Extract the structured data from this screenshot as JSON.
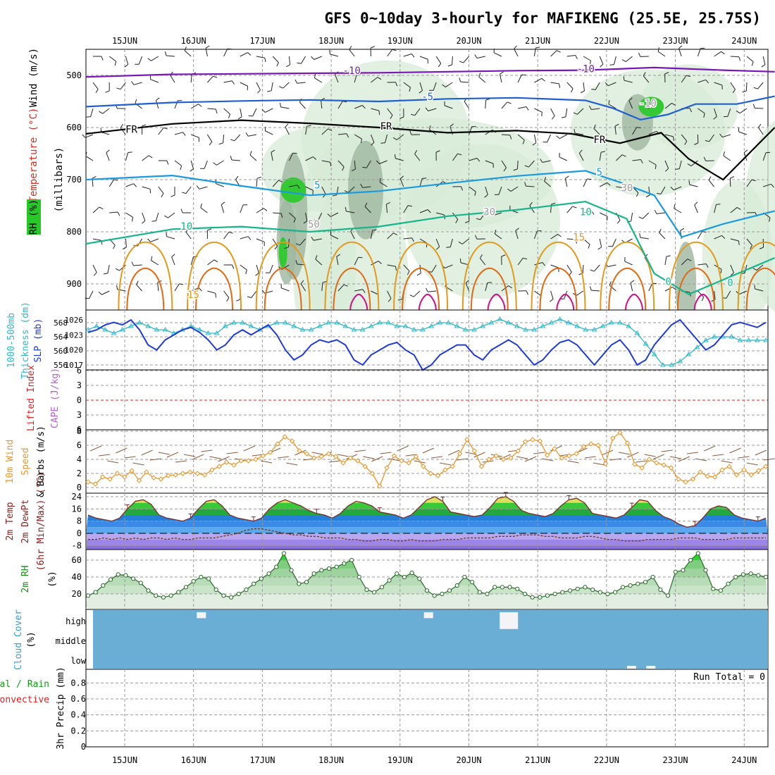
{
  "title": "GFS 0~10day 3-hourly for MAFIKENG (25.5E, 25.75S)",
  "colors": {
    "purple": "#7a16b8",
    "blue": "#1f5fd0",
    "sky": "#1a9ae0",
    "teal": "#16b58d",
    "orange": "#e39a1c",
    "darkorange": "#e06a12",
    "magenta": "#d0108a",
    "cyan": "#2fb8c8",
    "slp": "#1f3bd6",
    "wind": "#e8962a",
    "cloud": "#6aaed6",
    "rhgreen": "#2bd62b",
    "gray": "#a8a8a8",
    "red": "#e02020"
  },
  "chart_data": [
    {
      "panel": "upper-air",
      "type": "contour",
      "x_ticks": [
        "15JUN",
        "16JUN",
        "17JUN",
        "18JUN",
        "19JUN",
        "20JUN",
        "21JUN",
        "22JUN",
        "23JUN",
        "24JUN"
      ],
      "y_ticks": [
        500,
        600,
        700,
        800,
        900
      ],
      "ylim": [
        450,
        950
      ],
      "labels": {
        "ylabel_pressure": "(millibars)",
        "ylabel_wind": "Wind (m/s)",
        "ylabel_temp": "Temperature (°C)",
        "ylabel_rh": "RH (%)"
      },
      "contour_labels": [
        "-10",
        "-10",
        "-5",
        "FR",
        "FR",
        "FR",
        "5",
        "5",
        "10",
        "10",
        "15",
        "15",
        "30",
        "30",
        "50",
        "0",
        "0",
        "-10"
      ],
      "temperature_contours": [
        {
          "name": "-10",
          "color": "purple",
          "points": [
            [
              0,
              503
            ],
            [
              1,
              498
            ],
            [
              2,
              497
            ],
            [
              3,
              496
            ],
            [
              4,
              495
            ],
            [
              5,
              493
            ],
            [
              6,
              491
            ],
            [
              7,
              490
            ],
            [
              8,
              485
            ],
            [
              9,
              490
            ],
            [
              9.75,
              493
            ]
          ]
        },
        {
          "name": "-5",
          "color": "blue",
          "points": [
            [
              0,
              560
            ],
            [
              1,
              552
            ],
            [
              2,
              549
            ],
            [
              3,
              547
            ],
            [
              4,
              550
            ],
            [
              5,
              545
            ],
            [
              6,
              543
            ],
            [
              7,
              548
            ],
            [
              7.4,
              563
            ],
            [
              7.8,
              585
            ],
            [
              8.2,
              575
            ],
            [
              8.6,
              555
            ],
            [
              9.2,
              555
            ],
            [
              9.75,
              540
            ]
          ]
        },
        {
          "name": "FR",
          "color": "black",
          "points": [
            [
              0,
              612
            ],
            [
              1,
              593
            ],
            [
              2,
              586
            ],
            [
              3,
              592
            ],
            [
              4,
              600
            ],
            [
              5,
              610
            ],
            [
              6,
              606
            ],
            [
              6.8,
              612
            ],
            [
              7.5,
              630
            ],
            [
              8.1,
              610
            ],
            [
              8.5,
              660
            ],
            [
              9,
              700
            ],
            [
              9.75,
              600
            ]
          ]
        },
        {
          "name": "5",
          "color": "sky",
          "points": [
            [
              0,
              700
            ],
            [
              1,
              692
            ],
            [
              2,
              712
            ],
            [
              3,
              730
            ],
            [
              4,
              722
            ],
            [
              5,
              707
            ],
            [
              6,
              693
            ],
            [
              7,
              683
            ],
            [
              7.5,
              705
            ],
            [
              8,
              730
            ],
            [
              8.4,
              810
            ],
            [
              9,
              785
            ],
            [
              9.75,
              760
            ]
          ]
        },
        {
          "name": "10",
          "color": "teal",
          "points": [
            [
              0,
              823
            ],
            [
              1,
              795
            ],
            [
              2,
              790
            ],
            [
              3,
              800
            ],
            [
              4,
              790
            ],
            [
              5,
              770
            ],
            [
              6,
              758
            ],
            [
              7,
              742
            ],
            [
              7.6,
              775
            ],
            [
              8,
              880
            ],
            [
              8.5,
              920
            ],
            [
              9.75,
              850
            ]
          ]
        }
      ]
    },
    {
      "panel": "thickness-slp",
      "type": "line",
      "x_ticks": [
        "15JUN",
        "16JUN",
        "17JUN",
        "18JUN",
        "19JUN",
        "20JUN",
        "21JUN",
        "22JUN",
        "23JUN",
        "24JUN"
      ],
      "left_ticks": [
        568,
        564,
        560,
        556
      ],
      "right_ticks": [
        1026,
        1023,
        1020,
        1017
      ],
      "labels": {
        "ylabel_thickness": "Thickness (dm)",
        "ylabel_1000500": "1000-500mb",
        "ylabel_slp": "SLP (mb)"
      },
      "series": [
        {
          "name": "Thickness",
          "axis": "left",
          "color": "cyan",
          "values": [
            566,
            567,
            566,
            565,
            566,
            567,
            568,
            567,
            566,
            566,
            565,
            566,
            567,
            566,
            565,
            565,
            567,
            568,
            568,
            567,
            566,
            567,
            568,
            568,
            567,
            566,
            566,
            567,
            568,
            568,
            567,
            566,
            566,
            567,
            568,
            568,
            567,
            567,
            566,
            566,
            567,
            568,
            568,
            567,
            566,
            566,
            567,
            568,
            569,
            568,
            567,
            566,
            566,
            567,
            568,
            569,
            568,
            567,
            566,
            566,
            567,
            568,
            568,
            567,
            565,
            562,
            559,
            556,
            556,
            557,
            559,
            561,
            563,
            564,
            564,
            564,
            563,
            563,
            563,
            563
          ]
        },
        {
          "name": "SLP",
          "axis": "right",
          "color": "slp",
          "values": [
            1023.5,
            1024,
            1025,
            1025.5,
            1025,
            1026,
            1024,
            1021,
            1020,
            1022,
            1023,
            1024,
            1024.5,
            1023.5,
            1022,
            1020,
            1021,
            1023,
            1024,
            1023,
            1024,
            1025,
            1023,
            1020,
            1018,
            1019,
            1021,
            1022,
            1021.5,
            1022,
            1021,
            1018,
            1017,
            1019,
            1020,
            1021,
            1021.5,
            1020,
            1019,
            1016,
            1017,
            1019,
            1020,
            1021,
            1021,
            1019,
            1018,
            1020,
            1021,
            1022,
            1021,
            1019,
            1017,
            1018,
            1020,
            1021.5,
            1022,
            1021,
            1019,
            1017,
            1019,
            1021,
            1022,
            1020,
            1017,
            1018,
            1021,
            1023,
            1025,
            1026,
            1024,
            1022,
            1020,
            1021,
            1023,
            1025,
            1025.5,
            1025,
            1024.5,
            1025.5
          ]
        }
      ]
    },
    {
      "panel": "lifted-index-cape",
      "type": "line",
      "x_ticks": [
        "15JUN",
        "16JUN",
        "17JUN",
        "18JUN",
        "19JUN",
        "20JUN",
        "21JUN",
        "22JUN",
        "23JUN",
        "24JUN"
      ],
      "left_ticks": [
        -6,
        -3,
        0,
        3,
        6
      ],
      "left_tick_labels": [
        "6",
        "3",
        "0",
        "3",
        "6"
      ],
      "labels": {
        "ylabel_li": "Lifted Index",
        "ylabel_cape": "CAPE (J/kg)"
      },
      "series": [
        {
          "name": "Lifted Index",
          "color": "red",
          "values": []
        }
      ]
    },
    {
      "panel": "10m-wind",
      "type": "line",
      "x_ticks": [
        "15JUN",
        "16JUN",
        "17JUN",
        "18JUN",
        "19JUN",
        "20JUN",
        "21JUN",
        "22JUN",
        "23JUN",
        "24JUN"
      ],
      "left_ticks": [
        0,
        2,
        4,
        6,
        8
      ],
      "labels": {
        "ylabel_wind": "10m Wind",
        "ylabel_speed": "Speed",
        "ylabel_barbs": "& Barbs (m/s)"
      },
      "series": [
        {
          "name": "Speed",
          "color": "wind",
          "values": [
            0.8,
            0.5,
            1.5,
            1.2,
            2.0,
            1.5,
            2.4,
            1.0,
            2.2,
            1.4,
            1.2,
            1.7,
            1.8,
            2.0,
            2.2,
            2.0,
            1.8,
            2.5,
            3.0,
            3.6,
            3.2,
            3.8,
            3.8,
            4.0,
            4.5,
            5.0,
            6.2,
            7.2,
            6.6,
            5.2,
            4.8,
            4.2,
            4.4,
            4.8,
            4.4,
            3.5,
            4.2,
            3.8,
            3.0,
            2.0,
            0.2,
            2.8,
            4.5,
            3.8,
            3.5,
            4.4,
            3.0,
            2.0,
            1.7,
            2.5,
            3.0,
            4.8,
            6.8,
            5.2,
            3.0,
            4.0,
            4.5,
            4.0,
            4.2,
            5.2,
            6.5,
            6.8,
            6.6,
            4.6,
            5.5,
            4.2,
            4.5,
            4.8,
            5.8,
            6.2,
            6.0,
            3.4,
            7.0,
            7.8,
            6.3,
            3.3,
            2.8,
            4.0,
            3.5,
            3.2,
            2.8,
            1.2,
            0.8,
            1.2,
            2.2,
            1.6,
            1.5,
            2.5,
            3.0,
            1.8,
            2.5,
            1.8,
            2.4,
            3.0
          ]
        }
      ]
    },
    {
      "panel": "2m-temp",
      "type": "area",
      "x_ticks": [
        "15JUN",
        "16JUN",
        "17JUN",
        "18JUN",
        "19JUN",
        "20JUN",
        "21JUN",
        "22JUN",
        "23JUN",
        "24JUN"
      ],
      "left_ticks": [
        -8,
        0,
        8,
        16,
        24
      ],
      "labels": {
        "ylabel_temp": "2m Temp",
        "ylabel_dew": "2m DewPt",
        "ylabel_range": "(6hr Min/Max) (°C)"
      },
      "series": [
        {
          "name": "Temp",
          "color": "#2e8b2e",
          "values": [
            12,
            10,
            9,
            8,
            10,
            16,
            21,
            22,
            19,
            12,
            10,
            9,
            8,
            10,
            16,
            21,
            22,
            18,
            12,
            10,
            9,
            8,
            10,
            16,
            20,
            22,
            20,
            18,
            15,
            13,
            12,
            10,
            13,
            18,
            21,
            20,
            18,
            14,
            13,
            12,
            10,
            12,
            17,
            22,
            24,
            21,
            14,
            13,
            12,
            11,
            12,
            17,
            23,
            24,
            21,
            15,
            13,
            12,
            11,
            13,
            18,
            22,
            23,
            20,
            13,
            12,
            11,
            10,
            12,
            17,
            22,
            21,
            15,
            11,
            9,
            6,
            4,
            5,
            10,
            16,
            18,
            17,
            12,
            10,
            9,
            8,
            10
          ]
        },
        {
          "name": "DewPt",
          "color": "#7a3c1a",
          "values": [
            -4,
            -4,
            -3,
            -4,
            -3,
            -4,
            -3,
            -4,
            -3,
            -3,
            -4,
            -3,
            -4,
            -4,
            -3,
            -3,
            -3,
            -2,
            -1,
            0,
            2,
            3,
            3,
            2,
            1,
            0,
            -1,
            -1,
            -2,
            -2,
            -3,
            -3,
            -3,
            -4,
            -4,
            -5,
            -5,
            -4,
            -4,
            -5,
            -5,
            -4,
            -5,
            -5,
            -5,
            -4,
            -4,
            -4,
            -3,
            -3,
            -3,
            -3,
            -2,
            -2,
            -2,
            -1,
            -1,
            -1,
            -2,
            -2,
            -3,
            -3,
            -3,
            -2,
            -2,
            -3,
            -4,
            -4,
            -5,
            -5,
            -5,
            -4,
            -4,
            -4,
            -4,
            -3,
            -3,
            -3,
            -4,
            -4,
            -4,
            -4,
            -3,
            -3,
            -3,
            -3,
            -3
          ]
        }
      ]
    },
    {
      "panel": "2m-rh",
      "type": "area",
      "x_ticks": [
        "15JUN",
        "16JUN",
        "17JUN",
        "18JUN",
        "19JUN",
        "20JUN",
        "21JUN",
        "22JUN",
        "23JUN",
        "24JUN"
      ],
      "left_ticks": [
        20,
        40,
        60
      ],
      "labels": {
        "ylabel_rh": "2m RH",
        "ylabel_unit": "(%)"
      },
      "series": [
        {
          "name": "RH",
          "color": "rhgreen",
          "values": [
            18,
            22,
            30,
            37,
            43,
            42,
            38,
            33,
            24,
            18,
            16,
            18,
            22,
            28,
            35,
            40,
            38,
            25,
            18,
            16,
            20,
            25,
            32,
            38,
            44,
            52,
            68,
            48,
            32,
            34,
            44,
            48,
            50,
            52,
            56,
            60,
            40,
            25,
            22,
            28,
            36,
            44,
            40,
            45,
            38,
            24,
            18,
            20,
            24,
            30,
            40,
            34,
            22,
            20,
            28,
            28,
            28,
            26,
            20,
            16,
            16,
            18,
            20,
            22,
            24,
            26,
            28,
            25,
            22,
            20,
            22,
            28,
            30,
            32,
            34,
            40,
            25,
            18,
            46,
            48,
            60,
            68,
            48,
            26,
            24,
            32,
            40,
            43,
            44,
            42,
            40
          ]
        }
      ]
    },
    {
      "panel": "cloud-cover",
      "type": "heatmap",
      "x_ticks": [
        "15JUN",
        "16JUN",
        "17JUN",
        "18JUN",
        "19JUN",
        "20JUN",
        "21JUN",
        "22JUN",
        "23JUN",
        "24JUN"
      ],
      "row_labels": [
        "high",
        "middle",
        "low"
      ],
      "labels": {
        "ylabel_cloud": "Cloud Cover",
        "ylabel_unit": "(%)"
      },
      "cells": [
        {
          "level": "high",
          "day": 1.17,
          "value": 20
        },
        {
          "level": "high",
          "day": 4.47,
          "value": 20
        },
        {
          "level": "high",
          "day": 5.57,
          "value": 90
        },
        {
          "level": "low",
          "day": 7.42,
          "value": 15
        },
        {
          "level": "low",
          "day": 7.7,
          "value": 20
        }
      ]
    },
    {
      "panel": "3hr-precip",
      "type": "bar",
      "x_ticks": [
        "15JUN",
        "16JUN",
        "17JUN",
        "18JUN",
        "19JUN",
        "20JUN",
        "21JUN",
        "22JUN",
        "23JUN",
        "24JUN"
      ],
      "left_ticks": [
        0,
        0.2,
        0.4,
        0.6,
        0.8
      ],
      "left_tick_labels": [
        "0",
        "0.2",
        "0.4",
        "0.6",
        "0.8"
      ],
      "ylim": [
        0,
        0.95
      ],
      "labels": {
        "ylabel_precip": "3hr Precip (mm)",
        "legend_total": "Total / Rain",
        "legend_convective": "Convective",
        "run_total": "Run Total = 0"
      },
      "values": []
    }
  ]
}
